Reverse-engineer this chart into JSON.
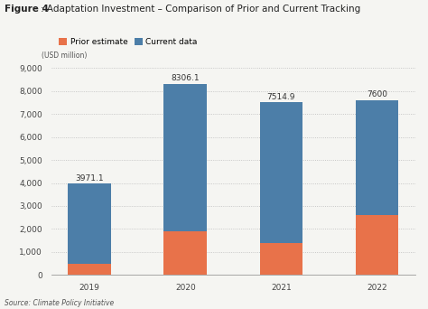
{
  "title_bold": "Figure 4",
  "title_rest": ": Adaptation Investment – Comparison of Prior and Current Tracking",
  "ylabel": "(USD million)",
  "source": "Source: Climate Policy Initiative",
  "categories": [
    "2019",
    "2020",
    "2021",
    "2022"
  ],
  "prior_estimate": [
    500,
    1900,
    1400,
    2600
  ],
  "current_data": [
    3471.1,
    6406.1,
    6114.9,
    5000
  ],
  "totals": [
    "3971.1",
    "8306.1",
    "7514.9",
    "7600"
  ],
  "total_values": [
    3971.1,
    8306.1,
    7514.9,
    7600
  ],
  "prior_color": "#E8724A",
  "current_color": "#4C7EA8",
  "background_color": "#F5F5F2",
  "ylim": [
    0,
    9000
  ],
  "yticks": [
    0,
    1000,
    2000,
    3000,
    4000,
    5000,
    6000,
    7000,
    8000,
    9000
  ],
  "legend_labels": [
    "Prior estimate",
    "Current data"
  ],
  "bar_width": 0.45,
  "title_fontsize": 7.5,
  "label_fontsize": 6.5,
  "tick_fontsize": 6.5,
  "annotation_fontsize": 6.5
}
